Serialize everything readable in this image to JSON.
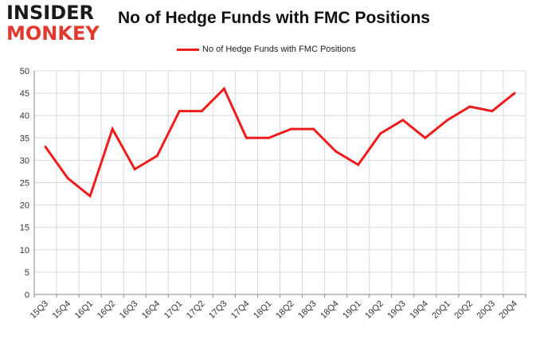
{
  "logo": {
    "top": "INSIDER",
    "bottom": "MONKEY"
  },
  "chart_data": {
    "type": "line",
    "title": "No of Hedge Funds with FMC Positions",
    "xlabel": "",
    "ylabel": "",
    "categories": [
      "15Q3",
      "15Q4",
      "16Q1",
      "16Q2",
      "16Q3",
      "16Q4",
      "17Q1",
      "17Q2",
      "17Q3",
      "17Q4",
      "18Q1",
      "18Q2",
      "18Q3",
      "18Q4",
      "19Q1",
      "19Q2",
      "19Q3",
      "19Q4",
      "20Q1",
      "20Q2",
      "20Q3",
      "20Q4"
    ],
    "series": [
      {
        "name": "No of Hedge Funds with FMC Positions",
        "values": [
          33,
          26,
          22,
          37,
          28,
          31,
          41,
          41,
          46,
          35,
          35,
          37,
          37,
          32,
          29,
          36,
          39,
          35,
          39,
          42,
          41,
          45
        ]
      }
    ],
    "ylim": [
      0,
      50
    ],
    "yticks": [
      0,
      5,
      10,
      15,
      20,
      25,
      30,
      35,
      40,
      45,
      50
    ],
    "grid": true,
    "legend_position": "top-center",
    "colors": {
      "series": "#ee1c1c",
      "grid": "#d9d9d9",
      "axis": "#888888",
      "logo_accent": "#e03a2e"
    }
  }
}
